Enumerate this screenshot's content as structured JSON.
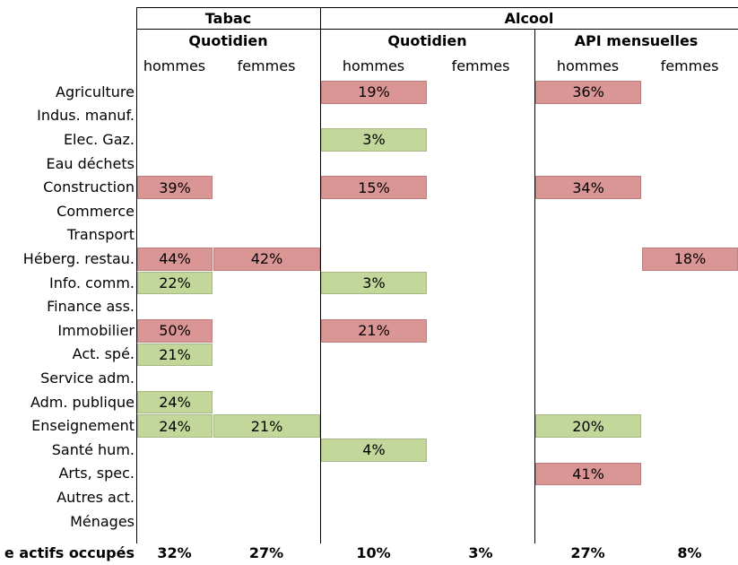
{
  "header": {
    "groups": [
      "Tabac",
      "Alcool"
    ],
    "subgroups": [
      "Quotidien",
      "Quotidien",
      "API mensuelles"
    ],
    "columns": [
      "hommes",
      "femmes",
      "hommes",
      "femmes",
      "hommes",
      "femmes"
    ]
  },
  "table": {
    "rows": [
      {
        "label": "Agriculture",
        "cells": [
          null,
          null,
          {
            "text": "19%",
            "color": "#da9694"
          },
          null,
          {
            "text": "36%",
            "color": "#da9694"
          },
          null
        ]
      },
      {
        "label": "Indus. manuf.",
        "cells": [
          null,
          null,
          null,
          null,
          null,
          null
        ]
      },
      {
        "label": "Elec. Gaz.",
        "cells": [
          null,
          null,
          {
            "text": "3%",
            "color": "#c4d79b"
          },
          null,
          null,
          null
        ]
      },
      {
        "label": "Eau déchets",
        "cells": [
          null,
          null,
          null,
          null,
          null,
          null
        ]
      },
      {
        "label": "Construction",
        "cells": [
          {
            "text": "39%",
            "color": "#da9694"
          },
          null,
          {
            "text": "15%",
            "color": "#da9694"
          },
          null,
          {
            "text": "34%",
            "color": "#da9694"
          },
          null
        ]
      },
      {
        "label": "Commerce",
        "cells": [
          null,
          null,
          null,
          null,
          null,
          null
        ]
      },
      {
        "label": "Transport",
        "cells": [
          null,
          null,
          null,
          null,
          null,
          null
        ]
      },
      {
        "label": "Héberg. restau.",
        "cells": [
          {
            "text": "44%",
            "color": "#da9694"
          },
          {
            "text": "42%",
            "color": "#da9694"
          },
          null,
          null,
          null,
          {
            "text": "18%",
            "color": "#da9694"
          }
        ]
      },
      {
        "label": "Info. comm.",
        "cells": [
          {
            "text": "22%",
            "color": "#c4d79b"
          },
          null,
          {
            "text": "3%",
            "color": "#c4d79b"
          },
          null,
          null,
          null
        ]
      },
      {
        "label": "Finance ass.",
        "cells": [
          null,
          null,
          null,
          null,
          null,
          null
        ]
      },
      {
        "label": "Immobilier",
        "cells": [
          {
            "text": "50%",
            "color": "#da9694"
          },
          null,
          {
            "text": "21%",
            "color": "#da9694"
          },
          null,
          null,
          null
        ]
      },
      {
        "label": "Act. spé.",
        "cells": [
          {
            "text": "21%",
            "color": "#c4d79b"
          },
          null,
          null,
          null,
          null,
          null
        ]
      },
      {
        "label": "Service adm.",
        "cells": [
          null,
          null,
          null,
          null,
          null,
          null
        ]
      },
      {
        "label": "Adm. publique",
        "cells": [
          {
            "text": "24%",
            "color": "#c4d79b"
          },
          null,
          null,
          null,
          null,
          null
        ]
      },
      {
        "label": "Enseignement",
        "cells": [
          {
            "text": "24%",
            "color": "#c4d79b"
          },
          {
            "text": "21%",
            "color": "#c4d79b"
          },
          null,
          null,
          {
            "text": "20%",
            "color": "#c4d79b"
          },
          null
        ]
      },
      {
        "label": "Santé hum.",
        "cells": [
          null,
          null,
          {
            "text": "4%",
            "color": "#c4d79b"
          },
          null,
          null,
          null
        ]
      },
      {
        "label": "Arts, spec.",
        "cells": [
          null,
          null,
          null,
          null,
          {
            "text": "41%",
            "color": "#da9694"
          },
          null
        ]
      },
      {
        "label": "Autres act.",
        "cells": [
          null,
          null,
          null,
          null,
          null,
          null
        ]
      },
      {
        "label": "Ménages",
        "cells": [
          null,
          null,
          null,
          null,
          null,
          null
        ]
      }
    ],
    "footer": {
      "label": "e actifs occupés",
      "cells": [
        "32%",
        "27%",
        "10%",
        "3%",
        "27%",
        "8%"
      ]
    }
  }
}
